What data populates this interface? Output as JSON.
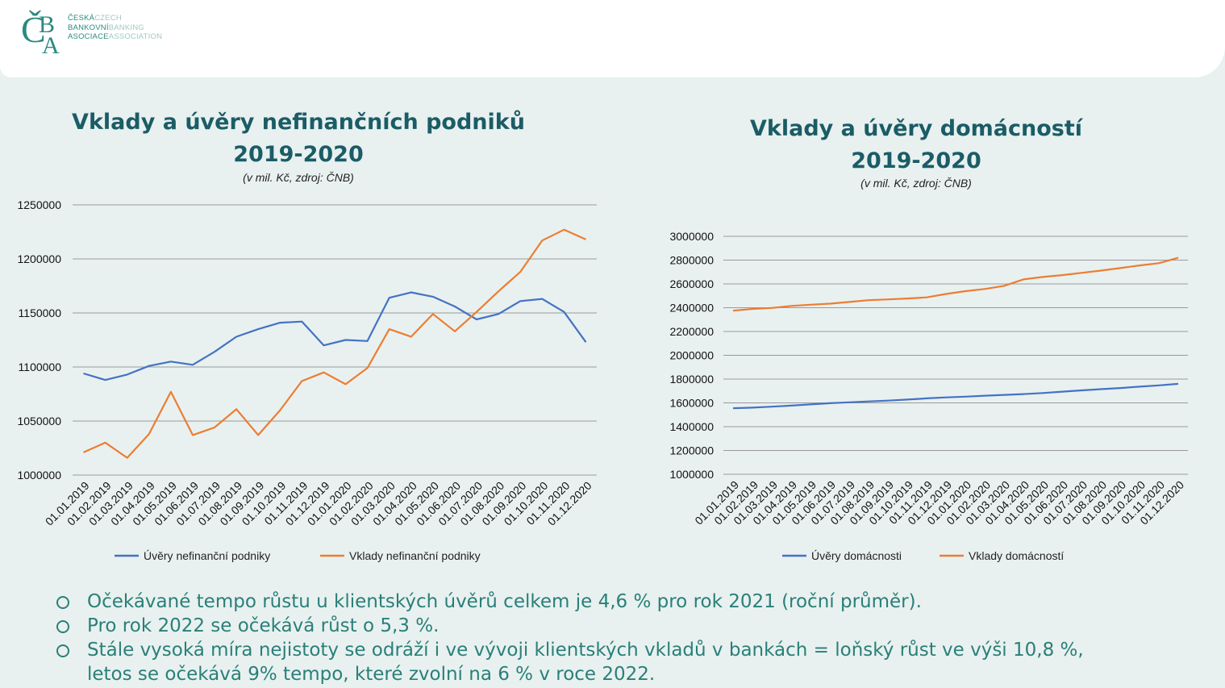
{
  "logo": {
    "mark": "ČBA",
    "lines": [
      {
        "cz": "ČESKÁ",
        "en": "CZECH"
      },
      {
        "cz": "BANKOVNÍ",
        "en": "BANKING"
      },
      {
        "cz": "ASOCIACE",
        "en": "ASSOCIATION"
      }
    ]
  },
  "colors": {
    "uvery": "#4472c4",
    "vklady": "#ed7d31",
    "title": "#1b5c66",
    "bullets": "#2a7f78"
  },
  "chart1": {
    "title_line1": "Vklady a úvěry nefinančních podniků",
    "title_line2": "2019-2020",
    "subtitle": "(v mil. Kč, zdroj: ČNB)"
  },
  "chart2": {
    "title_line1": "Vklady a úvěry domácností",
    "title_line2": "2019-2020",
    "subtitle": "(v mil. Kč, zdroj: ČNB)"
  },
  "chart_data": [
    {
      "type": "line",
      "categories": [
        "01.01.2019",
        "01.02.2019",
        "01.03.2019",
        "01.04.2019",
        "01.05.2019",
        "01.06.2019",
        "01.07.2019",
        "01.08.2019",
        "01.09.2019",
        "01.10.2019",
        "01.11.2019",
        "01.12.2019",
        "01.01.2020",
        "01.02.2020",
        "01.03.2020",
        "01.04.2020",
        "01.05.2020",
        "01.06.2020",
        "01.07.2020",
        "01.08.2020",
        "01.09.2020",
        "01.10.2020",
        "01.11.2020",
        "01.12.2020"
      ],
      "series": [
        {
          "name": "Úvěry nefinanční podniky",
          "color": "#4472c4",
          "values": [
            1094000,
            1088000,
            1093000,
            1101000,
            1105000,
            1102000,
            1114000,
            1128000,
            1135000,
            1141000,
            1142000,
            1120000,
            1125000,
            1124000,
            1164000,
            1169000,
            1165000,
            1156000,
            1144000,
            1149000,
            1161000,
            1163000,
            1151000,
            1123000
          ]
        },
        {
          "name": "Vklady nefinanční podniky",
          "color": "#ed7d31",
          "values": [
            1021000,
            1030000,
            1016000,
            1038000,
            1077000,
            1037000,
            1044000,
            1061000,
            1037000,
            1060000,
            1087000,
            1095000,
            1084000,
            1099000,
            1135000,
            1128000,
            1149000,
            1133000,
            1151000,
            1170000,
            1188000,
            1217000,
            1227000,
            1218000
          ]
        }
      ],
      "yticks": [
        1000000,
        1050000,
        1100000,
        1150000,
        1200000,
        1250000
      ],
      "ylim": [
        1000000,
        1250000
      ],
      "grid": true,
      "legend": "bottom"
    },
    {
      "type": "line",
      "categories": [
        "01.01.2019",
        "01.02.2019",
        "01.03.2019",
        "01.04.2019",
        "01.05.2019",
        "01.06.2019",
        "01.07.2019",
        "01.08.2019",
        "01.09.2019",
        "01.10.2019",
        "01.11.2019",
        "01.12.2019",
        "01.01.2020",
        "01.02.2020",
        "01.03.2020",
        "01.04.2020",
        "01.05.2020",
        "01.06.2020",
        "01.07.2020",
        "01.08.2020",
        "01.09.2020",
        "01.10.2020",
        "01.11.2020",
        "01.12.2020"
      ],
      "series": [
        {
          "name": "Úvěry domácnosti",
          "color": "#4472c4",
          "values": [
            1555000,
            1560000,
            1568000,
            1577000,
            1587000,
            1597000,
            1605000,
            1612000,
            1619000,
            1628000,
            1638000,
            1646000,
            1652000,
            1660000,
            1667000,
            1674000,
            1683000,
            1694000,
            1705000,
            1715000,
            1725000,
            1736000,
            1747000,
            1760000
          ]
        },
        {
          "name": "Vklady domácností",
          "color": "#ed7d31",
          "values": [
            2375000,
            2390000,
            2398000,
            2415000,
            2425000,
            2434000,
            2448000,
            2463000,
            2470000,
            2477000,
            2487000,
            2515000,
            2539000,
            2557000,
            2584000,
            2638000,
            2658000,
            2674000,
            2693000,
            2712000,
            2733000,
            2755000,
            2774000,
            2820000
          ]
        }
      ],
      "yticks": [
        1000000,
        1200000,
        1400000,
        1600000,
        1800000,
        2000000,
        2200000,
        2400000,
        2600000,
        2800000,
        3000000
      ],
      "ylim": [
        1000000,
        3000000
      ],
      "grid": true,
      "legend": "bottom"
    }
  ],
  "bullets": [
    "Očekávané tempo růstu u klientských úvěrů celkem je 4,6 % pro rok 2021 (roční průměr).",
    "Pro rok 2022 se očekává růst o 5,3 %.",
    "Stále vysoká míra nejistoty se odráží i ve vývoji klientských vkladů v bankách = loňský růst ve výši 10,8 %,",
    "letos se očekává 9% tempo, které zvolní na 6 % v roce 2022."
  ]
}
